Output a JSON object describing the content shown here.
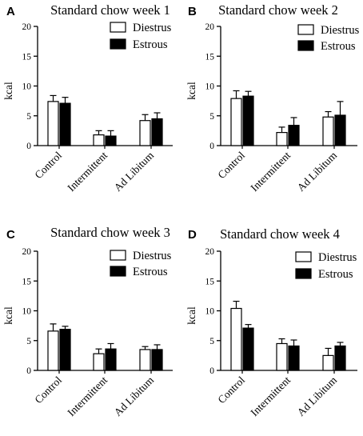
{
  "colors": {
    "diestrus": "#ffffff",
    "estrous": "#000000",
    "axis": "#000000"
  },
  "chart_data": [
    {
      "panel": "A",
      "type": "bar",
      "title": "Standard chow week 1",
      "ylabel": "kcal",
      "ylim": [
        0,
        20
      ],
      "yticks": [
        0,
        5,
        10,
        15,
        20
      ],
      "legend_position": "top-right",
      "categories": [
        "Control",
        "Intermittent",
        "Ad Libitum"
      ],
      "series": [
        {
          "name": "Diestrus",
          "values": [
            7.4,
            1.8,
            4.2
          ],
          "errors": [
            1.0,
            0.7,
            1.0
          ]
        },
        {
          "name": "Estrous",
          "values": [
            7.1,
            1.6,
            4.5
          ],
          "errors": [
            1.0,
            0.9,
            1.0
          ]
        }
      ]
    },
    {
      "panel": "B",
      "type": "bar",
      "title": "Standard chow week 2",
      "ylabel": "kcal",
      "ylim": [
        0,
        20
      ],
      "yticks": [
        0,
        5,
        10,
        15,
        20
      ],
      "legend_position": "top-right",
      "categories": [
        "Control",
        "Intermittent",
        "Ad Libitum"
      ],
      "series": [
        {
          "name": "Diestrus",
          "values": [
            7.9,
            2.2,
            4.8
          ],
          "errors": [
            1.3,
            0.9,
            0.9
          ]
        },
        {
          "name": "Estrous",
          "values": [
            8.3,
            3.4,
            5.1
          ],
          "errors": [
            0.8,
            1.3,
            2.3
          ]
        }
      ]
    },
    {
      "panel": "C",
      "type": "bar",
      "title": "Standard chow week 3",
      "ylabel": "kcal",
      "ylim": [
        0,
        20
      ],
      "yticks": [
        0,
        5,
        10,
        15,
        20
      ],
      "legend_position": "top-right",
      "categories": [
        "Control",
        "Intermittent",
        "Ad Libitum"
      ],
      "series": [
        {
          "name": "Diestrus",
          "values": [
            6.6,
            2.8,
            3.5
          ],
          "errors": [
            1.2,
            0.8,
            0.5
          ]
        },
        {
          "name": "Estrous",
          "values": [
            6.9,
            3.6,
            3.5
          ],
          "errors": [
            0.5,
            0.9,
            0.8
          ]
        }
      ]
    },
    {
      "panel": "D",
      "type": "bar",
      "title": "Standard chow week 4",
      "ylabel": "kcal",
      "ylim": [
        0,
        20
      ],
      "yticks": [
        0,
        5,
        10,
        15,
        20
      ],
      "legend_position": "top-right",
      "categories": [
        "Control",
        "Intermittent",
        "Ad Libitum"
      ],
      "series": [
        {
          "name": "Diestrus",
          "values": [
            10.4,
            4.5,
            2.5
          ],
          "errors": [
            1.2,
            0.8,
            1.2
          ]
        },
        {
          "name": "Estrous",
          "values": [
            7.1,
            4.1,
            4.1
          ],
          "errors": [
            0.6,
            1.0,
            0.6
          ]
        }
      ]
    }
  ]
}
